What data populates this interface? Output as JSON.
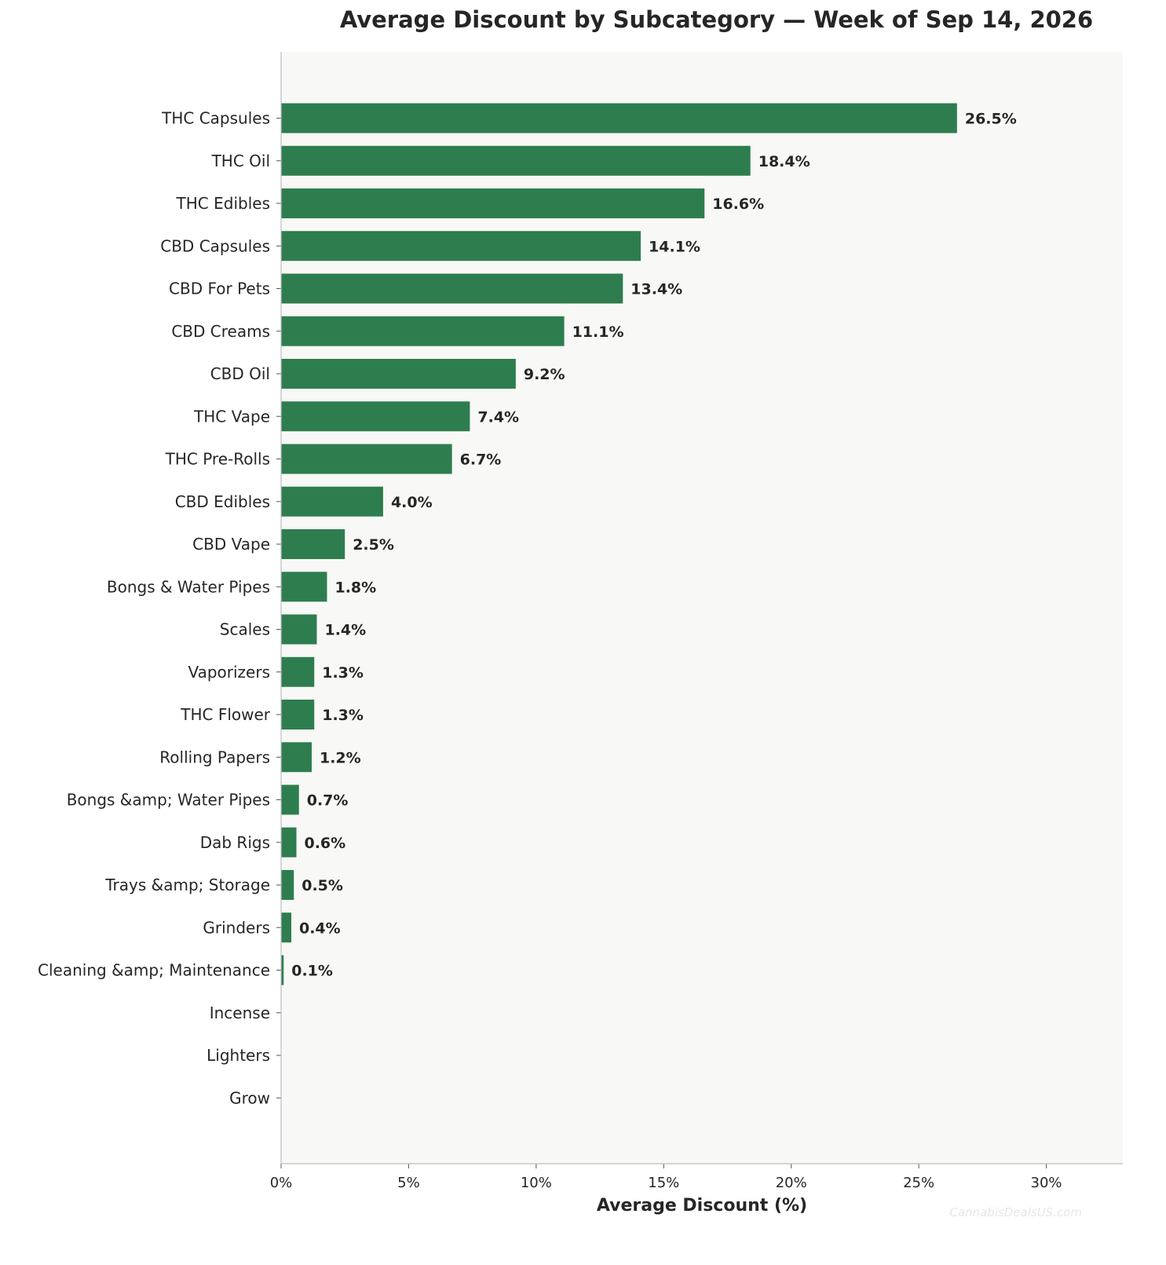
{
  "chart_data": {
    "type": "bar",
    "orientation": "horizontal",
    "title": "Average Discount by Subcategory — Week of Sep 14, 2026",
    "xlabel": "Average Discount (%)",
    "ylabel": "",
    "xlim": [
      0,
      33
    ],
    "xticks": [
      "0%",
      "5%",
      "10%",
      "15%",
      "20%",
      "25%",
      "30%"
    ],
    "grid": false,
    "bar_color": "#2e7d4f",
    "plot_background": "#f8f8f6",
    "categories": [
      "THC Capsules",
      "THC Oil",
      "THC Edibles",
      "CBD Capsules",
      "CBD For Pets",
      "CBD Creams",
      "CBD Oil",
      "THC Vape",
      "THC Pre-Rolls",
      "CBD Edibles",
      "CBD Vape",
      "Bongs & Water Pipes",
      "Scales",
      "Vaporizers",
      "THC Flower",
      "Rolling Papers",
      "Bongs &amp; Water Pipes",
      "Dab Rigs",
      "Trays &amp; Storage",
      "Grinders",
      "Cleaning &amp; Maintenance",
      "Incense",
      "Lighters",
      "Grow"
    ],
    "values": [
      26.5,
      18.4,
      16.6,
      14.1,
      13.4,
      11.1,
      9.2,
      7.4,
      6.7,
      4.0,
      2.5,
      1.8,
      1.4,
      1.3,
      1.3,
      1.2,
      0.7,
      0.6,
      0.5,
      0.4,
      0.1,
      0,
      0,
      0
    ],
    "data_labels": [
      "26.5%",
      "18.4%",
      "16.6%",
      "14.1%",
      "13.4%",
      "11.1%",
      "9.2%",
      "7.4%",
      "6.7%",
      "4.0%",
      "2.5%",
      "1.8%",
      "1.4%",
      "1.3%",
      "1.3%",
      "1.2%",
      "0.7%",
      "0.6%",
      "0.5%",
      "0.4%",
      "0.1%",
      "",
      "",
      ""
    ]
  },
  "watermark": "CannabisDealsUS.com"
}
